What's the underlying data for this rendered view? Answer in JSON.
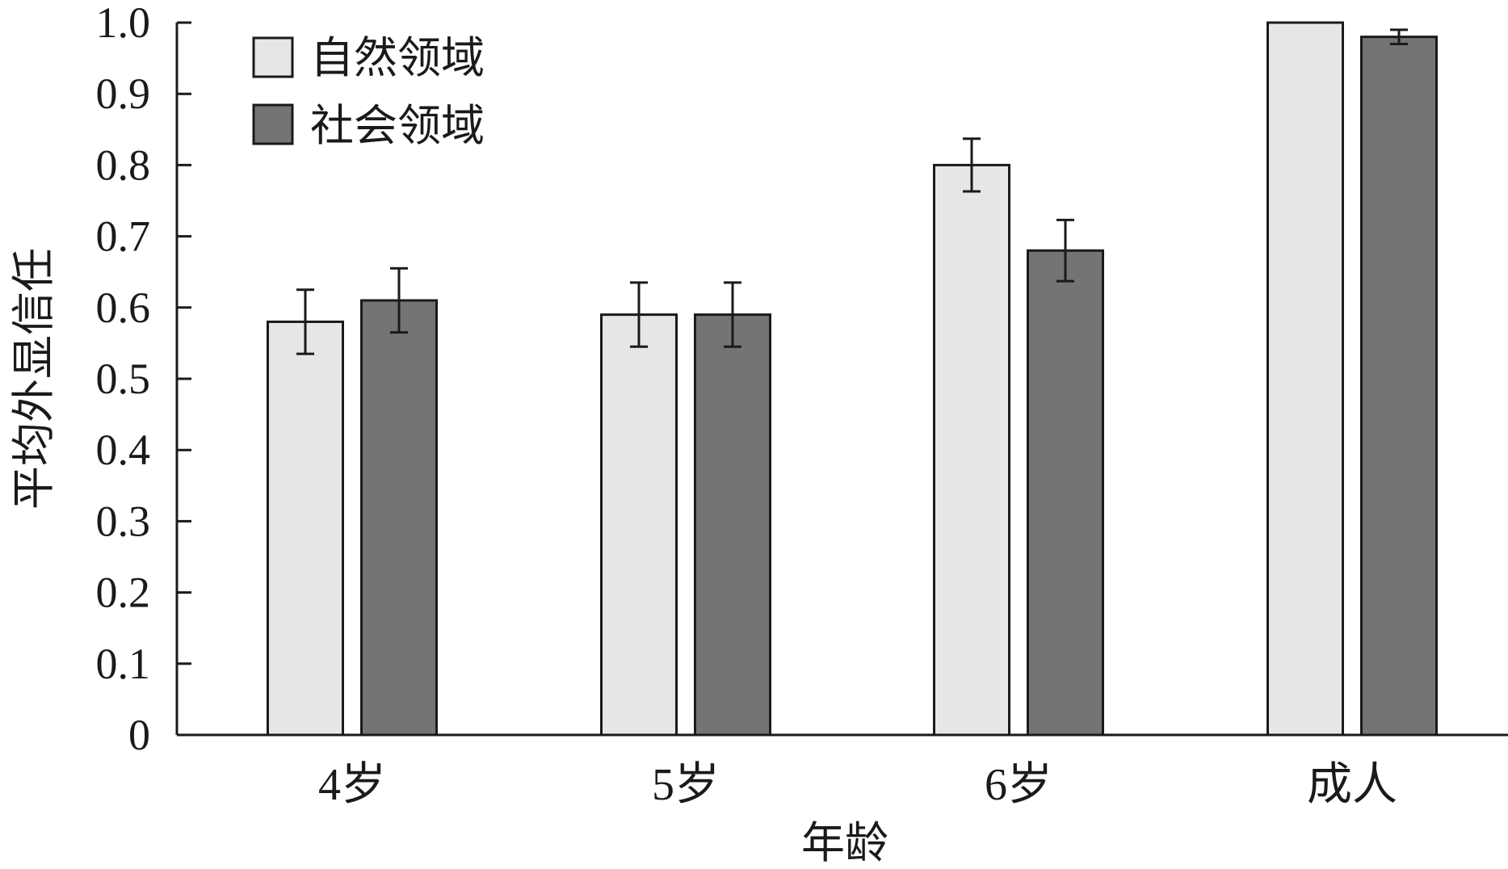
{
  "chart_data": {
    "type": "bar",
    "categories": [
      "4岁",
      "5岁",
      "6岁",
      "成人"
    ],
    "series": [
      {
        "name": "自然领域",
        "values": [
          0.58,
          0.59,
          0.8,
          1.0
        ],
        "errors": [
          0.045,
          0.045,
          0.037,
          0.0
        ],
        "color": "#e6e6e6"
      },
      {
        "name": "社会领域",
        "values": [
          0.61,
          0.59,
          0.68,
          0.98
        ],
        "errors": [
          0.045,
          0.045,
          0.043,
          0.01
        ],
        "color": "#737573"
      }
    ],
    "xlabel": "年龄",
    "ylabel": "平均外显信任",
    "ylim": [
      0,
      1.0
    ],
    "yticks": [
      "0",
      "0.1",
      "0.2",
      "0.3",
      "0.4",
      "0.5",
      "0.6",
      "0.7",
      "0.8",
      "0.9",
      "1.0"
    ],
    "legend_position": "top-left",
    "grid": false
  }
}
